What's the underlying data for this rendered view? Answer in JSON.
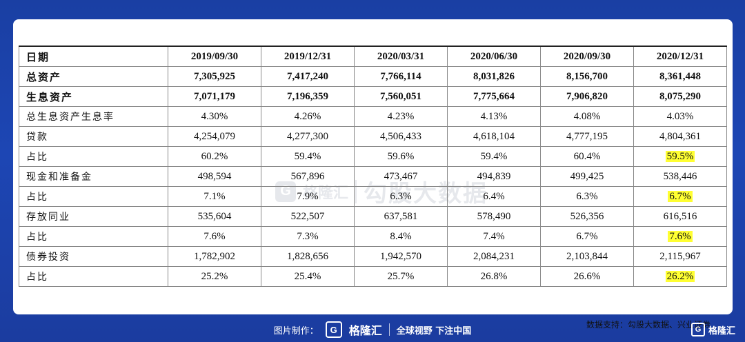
{
  "table": {
    "header": [
      "日期",
      "2019/09/30",
      "2019/12/31",
      "2020/03/31",
      "2020/06/30",
      "2020/09/30",
      "2020/12/31"
    ],
    "rows": [
      {
        "label": "总资产",
        "values": [
          "7,305,925",
          "7,417,240",
          "7,766,114",
          "8,031,826",
          "8,156,700",
          "8,361,448"
        ]
      },
      {
        "label": "生息资产",
        "values": [
          "7,071,179",
          "7,196,359",
          "7,560,051",
          "7,775,664",
          "7,906,820",
          "8,075,290"
        ]
      },
      {
        "label": "总生息资产生息率",
        "values": [
          "4.30%",
          "4.26%",
          "4.23%",
          "4.13%",
          "4.08%",
          "4.03%"
        ]
      },
      {
        "label": "贷款",
        "values": [
          "4,254,079",
          "4,277,300",
          "4,506,433",
          "4,618,104",
          "4,777,195",
          "4,804,361"
        ]
      },
      {
        "label": "占比",
        "values": [
          "60.2%",
          "59.4%",
          "59.6%",
          "59.4%",
          "60.4%",
          "59.5%"
        ]
      },
      {
        "label": "现金和准备金",
        "values": [
          "498,594",
          "567,896",
          "473,467",
          "494,839",
          "499,425",
          "538,446"
        ]
      },
      {
        "label": "占比",
        "values": [
          "7.1%",
          "7.9%",
          "6.3%",
          "6.4%",
          "6.3%",
          "6.7%"
        ]
      },
      {
        "label": "存放同业",
        "values": [
          "535,604",
          "522,507",
          "637,581",
          "578,490",
          "526,356",
          "616,516"
        ]
      },
      {
        "label": "占比",
        "values": [
          "7.6%",
          "7.3%",
          "8.4%",
          "7.4%",
          "6.7%",
          "7.6%"
        ]
      },
      {
        "label": "债券投资",
        "values": [
          "1,782,902",
          "1,828,656",
          "1,942,570",
          "2,084,231",
          "2,103,844",
          "2,115,967"
        ]
      },
      {
        "label": "占比",
        "values": [
          "25.2%",
          "25.4%",
          "25.7%",
          "26.8%",
          "26.6%",
          "26.2%"
        ]
      }
    ],
    "highlight_color": "#ffff33"
  },
  "source": "数据支持：勾股大数据、兴业证券",
  "watermark": {
    "brand": "格隆汇",
    "text": "勾股大数据",
    "logo_letter": "G"
  },
  "footer": {
    "prefix": "图片制作：",
    "logo_letter": "G",
    "brand": "格隆汇",
    "slogan": "全球视野 下注中国"
  },
  "corner_logo": {
    "letter": "G",
    "brand": "格隆汇"
  },
  "colors": {
    "background": "#1d46b4",
    "card": "#ffffff"
  }
}
